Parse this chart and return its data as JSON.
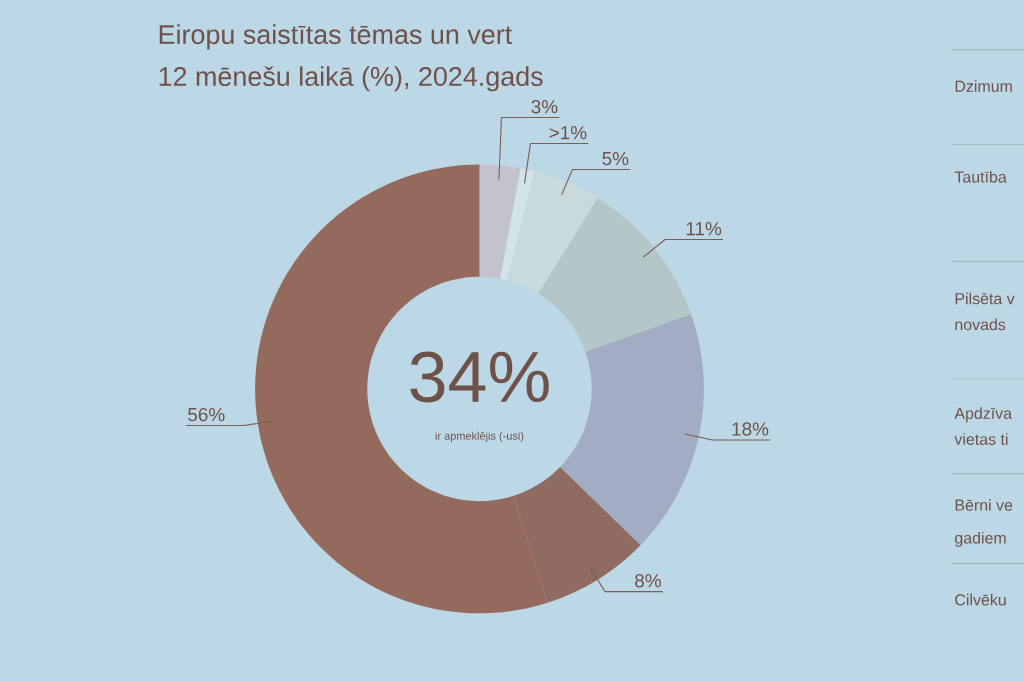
{
  "chart_data": {
    "type": "donut",
    "title": "Eiropu saistītas tēmas un vert",
    "subtitle": "12 mēnešu laikā (%), 2024.gads",
    "categories": [
      null,
      null,
      null,
      null,
      null,
      null,
      null
    ],
    "values": [
      3,
      1,
      5,
      11,
      18,
      8,
      56
    ],
    "colors": [
      "#c3c2cf",
      "#d2e3ea",
      "#c9dadd",
      "#b3c6c8",
      "#a2adc3",
      "#8f6b62",
      "#946a5d"
    ],
    "value_labels": [
      "3%",
      ">1%",
      "5%",
      "11%",
      "18%",
      "8%",
      "56%"
    ],
    "annotations": [
      "34%",
      "ir apmeklējis (-usi)",
      "Dzimum",
      "Tautība",
      "Pilsēta v",
      "novads",
      "Apdzīva",
      "vietas ti",
      "Bērni ve",
      "gadiem",
      "Cilvēku"
    ]
  }
}
